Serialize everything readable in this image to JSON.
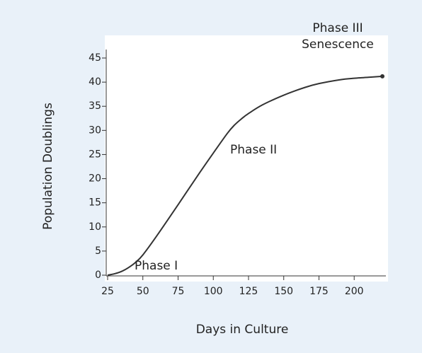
{
  "chart_data": {
    "type": "line",
    "x_label": "Days in Culture",
    "y_label": "Population Doublings",
    "x": [
      25,
      30,
      35,
      40,
      45,
      50,
      60,
      75,
      90,
      100,
      110,
      115,
      120,
      125,
      135,
      150,
      165,
      175,
      190,
      200,
      210,
      220
    ],
    "series": [
      {
        "name": "Population Doublings",
        "color": "#333333",
        "values": [
          0,
          0.3,
          0.8,
          1.6,
          2.7,
          4.2,
          8.2,
          14.6,
          21.1,
          25.3,
          29.4,
          31.1,
          32.4,
          33.5,
          35.3,
          37.3,
          38.9,
          39.7,
          40.5,
          40.8,
          41.0,
          41.2
        ]
      }
    ],
    "annotations": [
      "Phase I",
      "Phase II",
      "Phase III",
      "Senescence"
    ],
    "xlim": [
      25,
      222
    ],
    "ylim": [
      0,
      45
    ],
    "xticks": [
      25,
      50,
      75,
      100,
      125,
      150,
      175,
      200
    ],
    "yticks": [
      0,
      5,
      10,
      15,
      20,
      25,
      30,
      35,
      40,
      45
    ]
  }
}
